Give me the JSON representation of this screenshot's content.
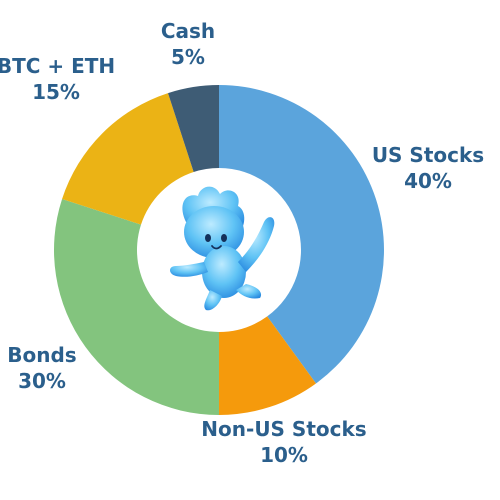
{
  "chart_data": {
    "type": "pie",
    "donut": true,
    "title": "",
    "slices": [
      {
        "label": "US Stocks",
        "value": 40,
        "value_label": "40%",
        "color": "#5BA4DC"
      },
      {
        "label": "Non-US Stocks",
        "value": 10,
        "value_label": "10%",
        "color": "#F59A0C"
      },
      {
        "label": "Bonds",
        "value": 30,
        "value_label": "30%",
        "color": "#83C47E"
      },
      {
        "label": "BTC + ETH",
        "value": 15,
        "value_label": "15%",
        "color": "#EBB315"
      },
      {
        "label": "Cash",
        "value": 5,
        "value_label": "5%",
        "color": "#3E5C75"
      }
    ],
    "label_color": "#2B5F8C",
    "center_icon": "blue-mascot-icon",
    "legend": "none"
  }
}
